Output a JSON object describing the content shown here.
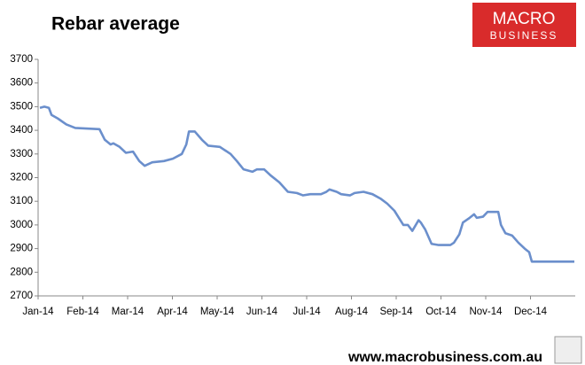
{
  "chart_data": {
    "type": "line",
    "title": "Rebar average",
    "logo": [
      "MACRO",
      "BUSINESS"
    ],
    "source": "www.macrobusiness.com.au",
    "grid": false,
    "xlim": [
      0,
      12
    ],
    "xticks": [
      {
        "value": 0,
        "label": "Jan-14"
      },
      {
        "value": 1,
        "label": "Feb-14"
      },
      {
        "value": 2,
        "label": "Mar-14"
      },
      {
        "value": 3,
        "label": "Apr-14"
      },
      {
        "value": 4,
        "label": "May-14"
      },
      {
        "value": 5,
        "label": "Jun-14"
      },
      {
        "value": 6,
        "label": "Jul-14"
      },
      {
        "value": 7,
        "label": "Aug-14"
      },
      {
        "value": 8,
        "label": "Sep-14"
      },
      {
        "value": 9,
        "label": "Oct-14"
      },
      {
        "value": 10,
        "label": "Nov-14"
      },
      {
        "value": 11,
        "label": "Dec-14"
      }
    ],
    "ylim": [
      2700,
      3700
    ],
    "yticks": [
      2700,
      2800,
      2900,
      3000,
      3100,
      3200,
      3300,
      3400,
      3500,
      3600,
      3700
    ],
    "series": [
      {
        "name": "Rebar average",
        "color": "#6b8fcc",
        "x": [
          0.04,
          0.14,
          0.24,
          0.3,
          0.44,
          0.63,
          0.83,
          1.37,
          1.49,
          1.62,
          1.68,
          1.82,
          1.96,
          2.12,
          2.26,
          2.38,
          2.55,
          2.81,
          3.01,
          3.21,
          3.31,
          3.37,
          3.5,
          3.66,
          3.8,
          4.06,
          4.3,
          4.44,
          4.59,
          4.79,
          4.89,
          5.05,
          5.19,
          5.39,
          5.58,
          5.78,
          5.92,
          6.08,
          6.32,
          6.44,
          6.51,
          6.67,
          6.77,
          6.97,
          7.07,
          7.27,
          7.47,
          7.66,
          7.8,
          7.96,
          8.06,
          8.16,
          8.26,
          8.36,
          8.5,
          8.55,
          8.65,
          8.79,
          8.95,
          9.21,
          9.29,
          9.41,
          9.49,
          9.64,
          9.74,
          9.8,
          9.94,
          10.04,
          10.28,
          10.34,
          10.44,
          10.59,
          10.73,
          10.87,
          10.97,
          11.03,
          11.98
        ],
        "values": [
          3495,
          3500,
          3495,
          3465,
          3450,
          3425,
          3410,
          3405,
          3360,
          3340,
          3345,
          3330,
          3305,
          3310,
          3270,
          3250,
          3265,
          3270,
          3280,
          3300,
          3340,
          3395,
          3395,
          3360,
          3335,
          3330,
          3300,
          3270,
          3235,
          3225,
          3235,
          3235,
          3210,
          3180,
          3140,
          3135,
          3125,
          3130,
          3130,
          3140,
          3150,
          3140,
          3130,
          3125,
          3135,
          3140,
          3130,
          3110,
          3090,
          3060,
          3030,
          3000,
          3000,
          2975,
          3020,
          3010,
          2980,
          2920,
          2915,
          2915,
          2925,
          2960,
          3010,
          3030,
          3045,
          3030,
          3035,
          3055,
          3055,
          3000,
          2965,
          2955,
          2925,
          2900,
          2885,
          2845,
          2845
        ]
      }
    ]
  }
}
